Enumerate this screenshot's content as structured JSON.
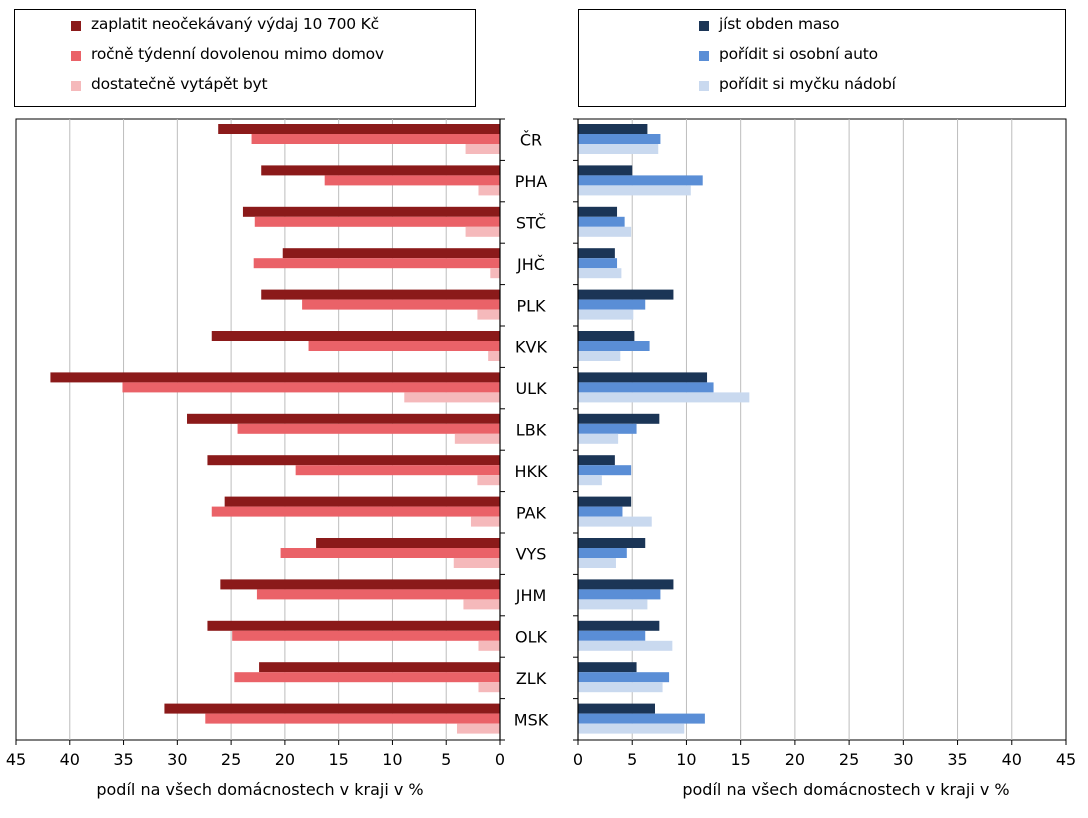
{
  "chart_data": [
    {
      "type": "bar",
      "orientation": "horizontal",
      "x_direction": "reversed",
      "categories": [
        "ČR",
        "PHA",
        "STČ",
        "JHČ",
        "PLK",
        "KVK",
        "ULK",
        "LBK",
        "HKK",
        "PAK",
        "VYS",
        "JHM",
        "OLK",
        "ZLK",
        "MSK"
      ],
      "series": [
        {
          "name": "zaplatit neočekávaný výdaj 10 700 Kč",
          "color": "#8b1a1a",
          "values": [
            26.2,
            22.2,
            23.9,
            20.2,
            22.2,
            26.8,
            41.8,
            29.1,
            27.2,
            25.6,
            17.1,
            26.0,
            27.2,
            22.4,
            31.2
          ]
        },
        {
          "name": "ročně týdenní dovolenou mimo domov",
          "color": "#ea6268",
          "values": [
            23.1,
            16.3,
            22.8,
            22.9,
            18.4,
            17.8,
            35.1,
            24.4,
            19.0,
            26.8,
            20.4,
            22.6,
            24.9,
            24.7,
            27.4
          ]
        },
        {
          "name": "dostatečně vytápět byt",
          "color": "#f5b9bb",
          "values": [
            3.2,
            2.0,
            3.2,
            0.9,
            2.1,
            1.1,
            8.9,
            4.2,
            2.1,
            2.7,
            4.3,
            3.4,
            2.0,
            2.0,
            4.0
          ]
        }
      ],
      "xlim": [
        0,
        45
      ],
      "xticks": [
        "45",
        "40",
        "35",
        "30",
        "25",
        "20",
        "15",
        "10",
        "5",
        "0"
      ],
      "xlabel": "podíl na všech domácnostech v kraji v %",
      "grid": "vertical",
      "legend_position": "top"
    },
    {
      "type": "bar",
      "orientation": "horizontal",
      "categories": [
        "ČR",
        "PHA",
        "STČ",
        "JHČ",
        "PLK",
        "KVK",
        "ULK",
        "LBK",
        "HKK",
        "PAK",
        "VYS",
        "JHM",
        "OLK",
        "ZLK",
        "MSK"
      ],
      "series": [
        {
          "name": "jíst obden maso",
          "color": "#1b3556",
          "values": [
            6.4,
            5.0,
            3.6,
            3.4,
            8.8,
            5.2,
            11.9,
            7.5,
            3.4,
            4.9,
            6.2,
            8.8,
            7.5,
            5.4,
            7.1
          ]
        },
        {
          "name": "pořídit si osobní auto",
          "color": "#5a8ed6",
          "values": [
            7.6,
            11.5,
            4.3,
            3.6,
            6.2,
            6.6,
            12.5,
            5.4,
            4.9,
            4.1,
            4.5,
            7.6,
            6.2,
            8.4,
            11.7
          ]
        },
        {
          "name": "pořídit si myčku nádobí",
          "color": "#c9d9ef",
          "values": [
            7.4,
            10.4,
            4.9,
            4.0,
            5.1,
            3.9,
            15.8,
            3.7,
            2.2,
            6.8,
            3.5,
            6.4,
            8.7,
            7.8,
            9.8
          ]
        }
      ],
      "xlim": [
        0,
        45
      ],
      "xticks": [
        "0",
        "5",
        "10",
        "15",
        "20",
        "25",
        "30",
        "35",
        "40",
        "45"
      ],
      "xlabel": "podíl na všech domácnostech v kraji v %",
      "grid": "vertical",
      "legend_position": "top"
    }
  ]
}
